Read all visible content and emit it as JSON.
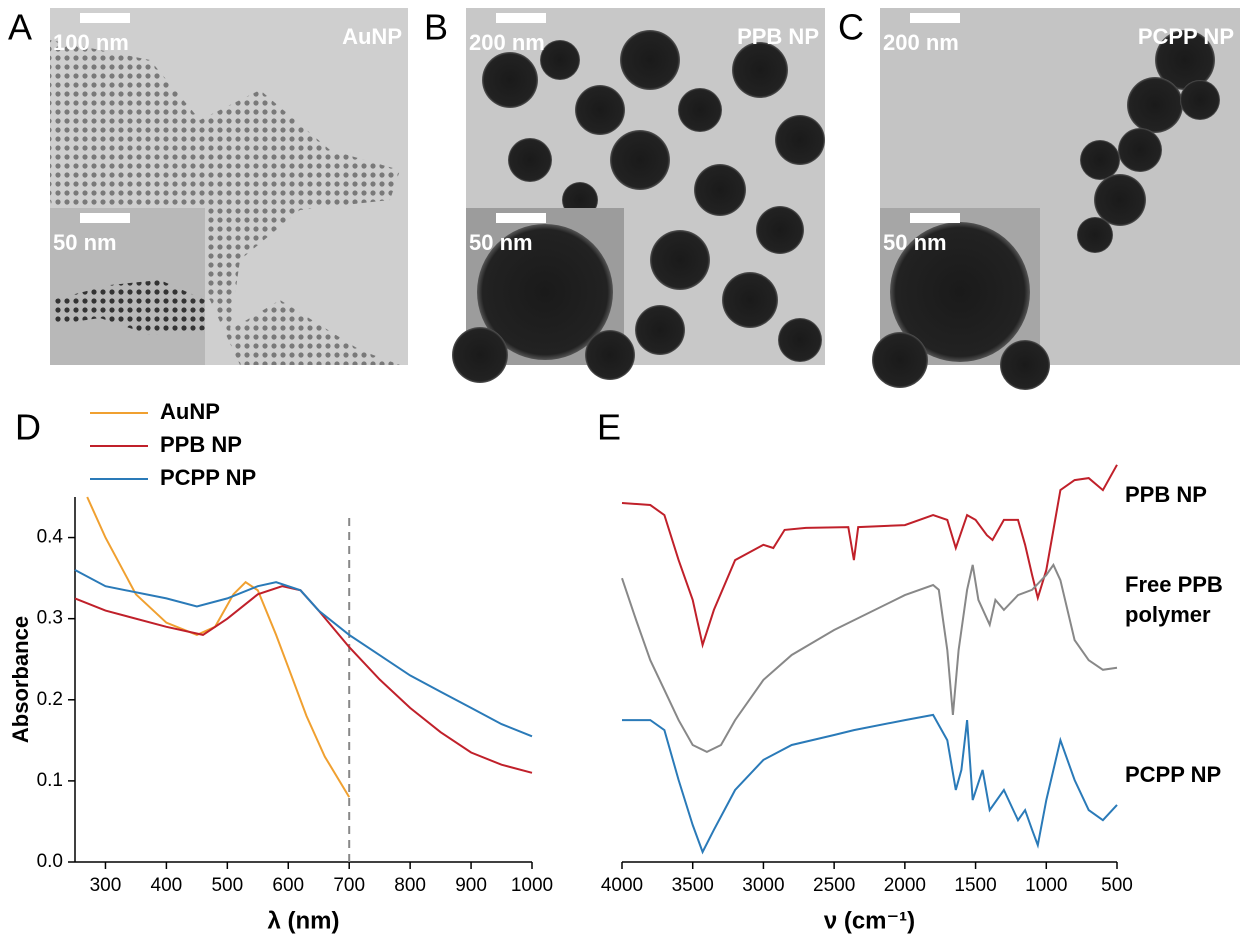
{
  "panels": [
    {
      "label": "A",
      "name": "AuNP",
      "scale": "100 nm",
      "inset_scale": "50 nm"
    },
    {
      "label": "B",
      "name": "PPB NP",
      "scale": "200 nm",
      "inset_scale": "50 nm"
    },
    {
      "label": "C",
      "name": "PCPP NP",
      "scale": "200 nm",
      "inset_scale": "50 nm"
    }
  ],
  "chart_data": [
    {
      "type": "line",
      "panel_label": "D",
      "xlabel": "λ (nm)",
      "ylabel": "Absorbance",
      "xlim": [
        250,
        1000
      ],
      "xticks": [
        300,
        400,
        500,
        600,
        700,
        800,
        900,
        1000
      ],
      "ylim": [
        0,
        0.45
      ],
      "yticks": [
        {
          "value": 0,
          "label": "0.0"
        },
        0.1,
        0.2,
        0.3,
        0.4
      ],
      "vline": 700,
      "legend": "upper left",
      "series": [
        {
          "name": "AuNP",
          "color": "#f0a030",
          "x": [
            270,
            300,
            350,
            400,
            450,
            480,
            510,
            530,
            550,
            580,
            600,
            630,
            660,
            700
          ],
          "values": [
            0.45,
            0.4,
            0.33,
            0.295,
            0.28,
            0.29,
            0.33,
            0.345,
            0.335,
            0.28,
            0.24,
            0.18,
            0.13,
            0.08
          ]
        },
        {
          "name": "PPB NP",
          "color": "#c0202a",
          "x": [
            250,
            300,
            400,
            460,
            500,
            550,
            590,
            620,
            650,
            700,
            750,
            800,
            850,
            900,
            950,
            1000
          ],
          "values": [
            0.325,
            0.31,
            0.29,
            0.28,
            0.3,
            0.33,
            0.34,
            0.335,
            0.31,
            0.265,
            0.225,
            0.19,
            0.16,
            0.135,
            0.12,
            0.11
          ]
        },
        {
          "name": "PCPP NP",
          "color": "#2a7ab8",
          "x": [
            250,
            300,
            400,
            450,
            500,
            550,
            580,
            620,
            650,
            700,
            750,
            800,
            850,
            900,
            950,
            1000
          ],
          "values": [
            0.36,
            0.34,
            0.325,
            0.315,
            0.325,
            0.34,
            0.345,
            0.335,
            0.31,
            0.28,
            0.255,
            0.23,
            0.21,
            0.19,
            0.17,
            0.155
          ]
        }
      ]
    },
    {
      "type": "line",
      "panel_label": "E",
      "xlabel": "ν (cm⁻¹)",
      "xlim": [
        4000,
        500
      ],
      "xticks": [
        4000,
        3500,
        3000,
        2500,
        2000,
        1500,
        1000,
        500
      ],
      "ylim": [
        0,
        100
      ],
      "legend": "right",
      "series": [
        {
          "name": "PPB NP",
          "color": "#c0202a",
          "x": [
            4000,
            3800,
            3700,
            3600,
            3500,
            3430,
            3350,
            3200,
            3000,
            2930,
            2850,
            2700,
            2400,
            2360,
            2330,
            2000,
            1800,
            1700,
            1640,
            1560,
            1500,
            1420,
            1380,
            1300,
            1200,
            1150,
            1100,
            1060,
            1000,
            950,
            900,
            800,
            700,
            600,
            500
          ],
          "values": [
            89.3,
            88.8,
            86.3,
            75.1,
            65.2,
            54.0,
            62.7,
            75.1,
            78.9,
            78.1,
            82.6,
            83.1,
            83.3,
            75.1,
            83.3,
            83.8,
            86.3,
            85.1,
            78.1,
            86.3,
            85.1,
            81.3,
            80.1,
            85.1,
            85.1,
            78.9,
            71.4,
            65.7,
            72.6,
            82.6,
            92.5,
            95.0,
            95.5,
            92.5,
            98.8
          ]
        },
        {
          "name": "Free PPB polymer",
          "color": "#888888",
          "x": [
            4000,
            3900,
            3800,
            3700,
            3600,
            3500,
            3400,
            3300,
            3200,
            3000,
            2800,
            2500,
            2000,
            1800,
            1760,
            1700,
            1660,
            1620,
            1560,
            1520,
            1480,
            1400,
            1360,
            1300,
            1200,
            1100,
            1000,
            950,
            900,
            800,
            700,
            600,
            500
          ],
          "values": [
            70.6,
            60.2,
            50.2,
            42.8,
            35.3,
            29.1,
            27.4,
            29.1,
            35.3,
            45.3,
            51.5,
            57.7,
            66.4,
            68.9,
            67.7,
            52.7,
            36.6,
            52.7,
            67.7,
            73.9,
            65.2,
            59.0,
            65.2,
            62.7,
            66.4,
            67.7,
            71.4,
            73.9,
            70.1,
            55.2,
            50.2,
            47.8,
            48.3
          ]
        },
        {
          "name": "PCPP NP",
          "color": "#2a7ab8",
          "x": [
            4000,
            3800,
            3700,
            3600,
            3500,
            3430,
            3350,
            3200,
            3000,
            2800,
            2500,
            2360,
            2000,
            1800,
            1700,
            1640,
            1600,
            1560,
            1520,
            1450,
            1400,
            1300,
            1200,
            1150,
            1100,
            1060,
            1000,
            900,
            800,
            700,
            600,
            500
          ],
          "values": [
            35.3,
            35.3,
            32.8,
            20.4,
            9.2,
            2.5,
            8.0,
            17.9,
            25.4,
            29.1,
            31.6,
            32.8,
            35.3,
            36.6,
            30.3,
            17.9,
            22.9,
            35.3,
            15.4,
            22.9,
            12.9,
            17.9,
            10.4,
            12.9,
            8.0,
            4.2,
            15.4,
            30.3,
            20.4,
            12.9,
            10.4,
            14.2
          ]
        }
      ]
    }
  ]
}
